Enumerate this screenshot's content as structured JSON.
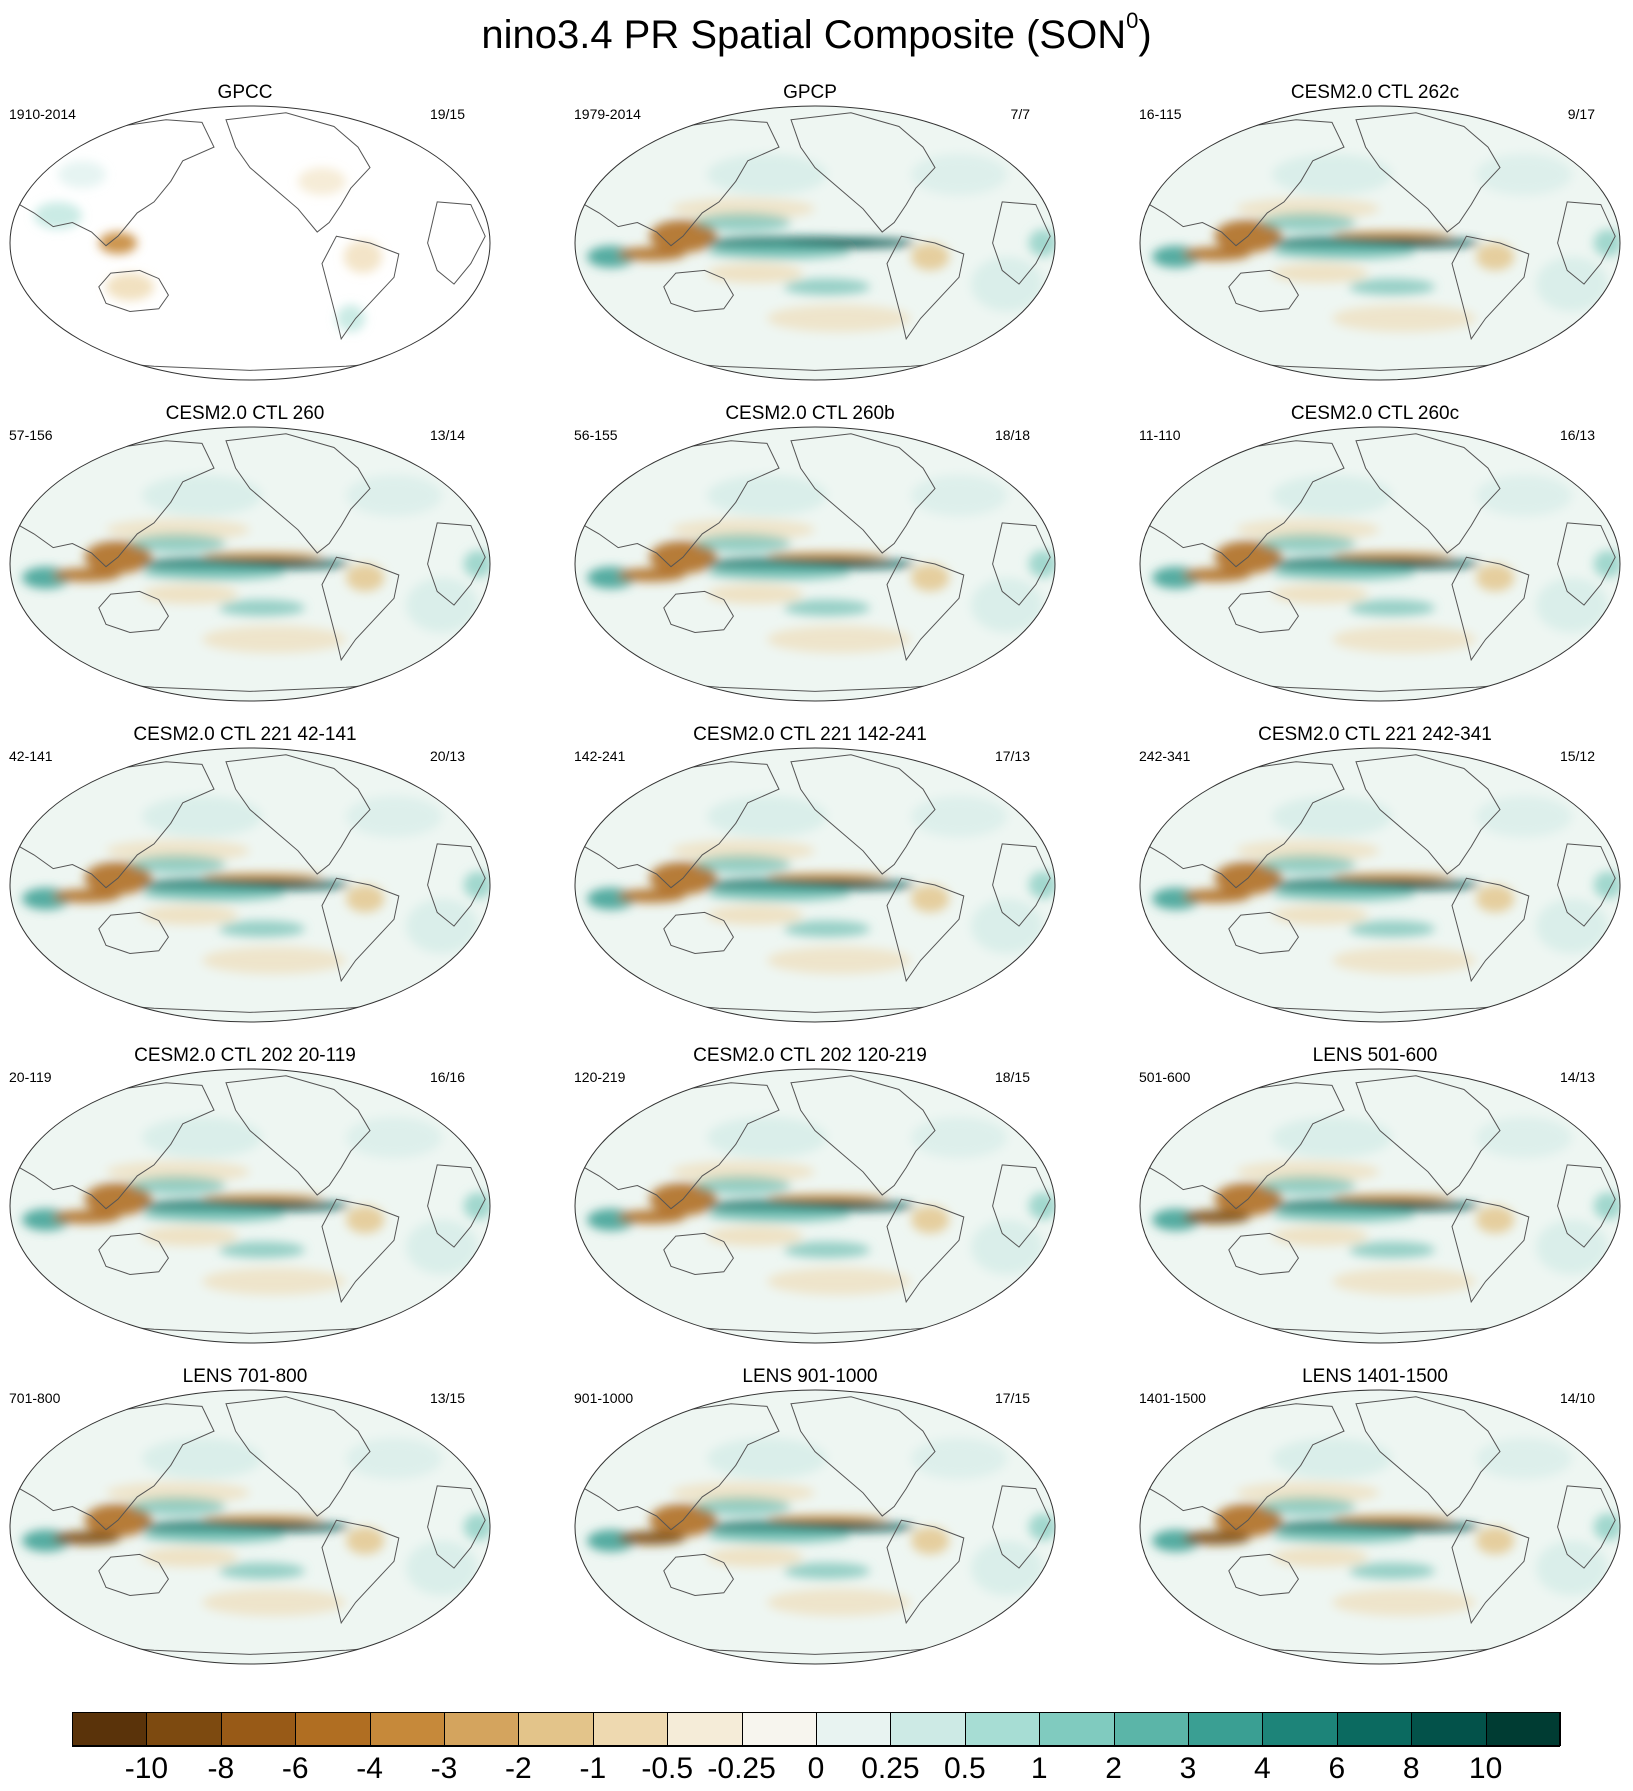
{
  "title": {
    "main": "nino3.4 PR Spatial Composite (SON",
    "superscript": "0",
    "close": ")"
  },
  "panels": [
    {
      "title": "GPCC",
      "left": "1910-2014",
      "right": "19/15",
      "style": "gpcc"
    },
    {
      "title": "GPCP",
      "left": "1979-2014",
      "right": "7/7",
      "style": "obs"
    },
    {
      "title": "CESM2.0 CTL 262c",
      "left": "16-115",
      "right": "9/17",
      "style": "model"
    },
    {
      "title": "CESM2.0 CTL 260",
      "left": "57-156",
      "right": "13/14",
      "style": "model"
    },
    {
      "title": "CESM2.0 CTL 260b",
      "left": "56-155",
      "right": "18/18",
      "style": "model"
    },
    {
      "title": "CESM2.0 CTL 260c",
      "left": "11-110",
      "right": "16/13",
      "style": "model"
    },
    {
      "title": "CESM2.0 CTL 221 42-141",
      "left": "42-141",
      "right": "20/13",
      "style": "model"
    },
    {
      "title": "CESM2.0 CTL 221 142-241",
      "left": "142-241",
      "right": "17/13",
      "style": "model"
    },
    {
      "title": "CESM2.0 CTL 221 242-341",
      "left": "242-341",
      "right": "15/12",
      "style": "model"
    },
    {
      "title": "CESM2.0 CTL 202 20-119",
      "left": "20-119",
      "right": "16/16",
      "style": "model"
    },
    {
      "title": "CESM2.0 CTL 202 120-219",
      "left": "120-219",
      "right": "18/15",
      "style": "model"
    },
    {
      "title": "LENS 501-600",
      "left": "501-600",
      "right": "14/13",
      "style": "lens"
    },
    {
      "title": "LENS 701-800",
      "left": "701-800",
      "right": "13/15",
      "style": "lens"
    },
    {
      "title": "LENS 901-1000",
      "left": "901-1000",
      "right": "17/15",
      "style": "lens"
    },
    {
      "title": "LENS 1401-1500",
      "left": "1401-1500",
      "right": "14/10",
      "style": "lens"
    }
  ],
  "colorbar": {
    "colors": [
      "#5a330a",
      "#7d4a10",
      "#985a17",
      "#b06e22",
      "#c6893a",
      "#d4a45e",
      "#e3c48a",
      "#eed9b0",
      "#f5ecd8",
      "#f7f5ee",
      "#e8f3f1",
      "#cdeae5",
      "#a7ddd4",
      "#80cbbf",
      "#5bb5a8",
      "#3a9f93",
      "#1d8479",
      "#0b6a60",
      "#03524a",
      "#003c33"
    ],
    "labels": [
      "-10",
      "-8",
      "-6",
      "-4",
      "-3",
      "-2",
      "-1",
      "-0.5",
      "-0.25",
      "0",
      "0.25",
      "0.5",
      "1",
      "2",
      "3",
      "4",
      "6",
      "8",
      "10"
    ]
  }
}
